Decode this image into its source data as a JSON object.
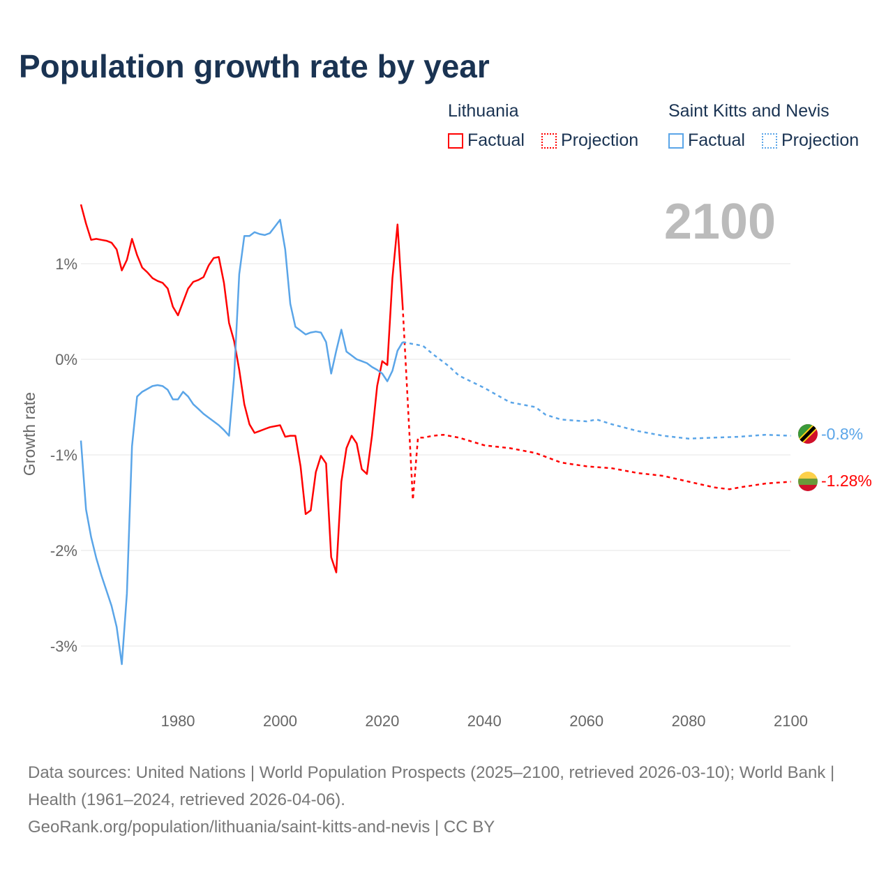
{
  "title": "Population growth rate by year",
  "legend": {
    "groups": [
      {
        "name": "Lithuania",
        "color": "#ff0000",
        "factual": "Factual",
        "projection": "Projection"
      },
      {
        "name": "Saint Kitts and Nevis",
        "color": "#5aa5e8",
        "factual": "Factual",
        "projection": "Projection"
      }
    ]
  },
  "year_label": "2100",
  "end_labels": {
    "lithuania": "-1.28%",
    "skn": "-0.8%"
  },
  "footer": {
    "line1": "Data sources: United Nations | World Population Prospects (2025–2100, retrieved 2026-03-10); World Bank | Health (1961–2024, retrieved 2026-04-06).",
    "line2": "GeoRank.org/population/lithuania/saint-kitts-and-nevis | CC BY"
  },
  "chart_data": {
    "type": "line",
    "title": "Population growth rate by year",
    "xlabel": "",
    "ylabel": "Growth rate",
    "xlim": [
      1961,
      2100
    ],
    "ylim": [
      -3.5,
      1.8
    ],
    "x_ticks": [
      1980,
      2000,
      2020,
      2040,
      2060,
      2080,
      2100
    ],
    "x_tick_labels": [
      "1980",
      "2000",
      "2020",
      "2040",
      "2060",
      "2080",
      "2100"
    ],
    "y_ticks": [
      1,
      0,
      -1,
      -2,
      -3
    ],
    "y_tick_labels": [
      "1%",
      "0%",
      "-1%",
      "-2%",
      "-3%"
    ],
    "grid": true,
    "legend_position": "top-right",
    "series": [
      {
        "name": "Lithuania Factual",
        "color": "#ff0000",
        "dashed": false,
        "start_year": 1961,
        "values": [
          1.62,
          1.42,
          1.25,
          1.26,
          1.25,
          1.24,
          1.22,
          1.15,
          0.93,
          1.04,
          1.26,
          1.09,
          0.96,
          0.91,
          0.85,
          0.82,
          0.8,
          0.74,
          0.55,
          0.46,
          0.6,
          0.74,
          0.81,
          0.83,
          0.86,
          0.98,
          1.06,
          1.07,
          0.8,
          0.38,
          0.19,
          -0.11,
          -0.47,
          -0.68,
          -0.77,
          -0.75,
          -0.73,
          -0.71,
          -0.7,
          -0.69,
          -0.81,
          -0.8,
          -0.8,
          -1.12,
          -1.62,
          -1.58,
          -1.18,
          -1.01,
          -1.09,
          -2.07,
          -2.23,
          -1.28,
          -0.93,
          -0.8,
          -0.88,
          -1.15,
          -1.2,
          -0.8,
          -0.28,
          -0.02,
          -0.06,
          0.85,
          1.41,
          0.55
        ]
      },
      {
        "name": "Lithuania Projection",
        "color": "#ff0000",
        "dashed": true,
        "points": [
          [
            2024,
            0.55
          ],
          [
            2025,
            -0.45
          ],
          [
            2026,
            -1.47
          ],
          [
            2027,
            -0.82
          ],
          [
            2028,
            -0.82
          ],
          [
            2030,
            -0.8
          ],
          [
            2032,
            -0.79
          ],
          [
            2035,
            -0.82
          ],
          [
            2040,
            -0.9
          ],
          [
            2045,
            -0.93
          ],
          [
            2050,
            -0.98
          ],
          [
            2055,
            -1.08
          ],
          [
            2060,
            -1.12
          ],
          [
            2065,
            -1.14
          ],
          [
            2070,
            -1.19
          ],
          [
            2075,
            -1.22
          ],
          [
            2080,
            -1.28
          ],
          [
            2085,
            -1.34
          ],
          [
            2088,
            -1.36
          ],
          [
            2090,
            -1.34
          ],
          [
            2095,
            -1.3
          ],
          [
            2100,
            -1.28
          ]
        ]
      },
      {
        "name": "Saint Kitts and Nevis Factual",
        "color": "#5aa5e8",
        "dashed": false,
        "start_year": 1961,
        "values": [
          -0.85,
          -1.57,
          -1.86,
          -2.08,
          -2.26,
          -2.42,
          -2.58,
          -2.8,
          -3.19,
          -2.45,
          -0.91,
          -0.39,
          -0.34,
          -0.31,
          -0.28,
          -0.27,
          -0.28,
          -0.32,
          -0.42,
          -0.42,
          -0.34,
          -0.39,
          -0.47,
          -0.52,
          -0.57,
          -0.61,
          -0.65,
          -0.69,
          -0.74,
          -0.8,
          -0.18,
          0.89,
          1.29,
          1.29,
          1.33,
          1.31,
          1.3,
          1.32,
          1.39,
          1.46,
          1.15,
          0.58,
          0.34,
          0.3,
          0.26,
          0.28,
          0.29,
          0.28,
          0.18,
          -0.15,
          0.09,
          0.31,
          0.08,
          0.04,
          0.0,
          -0.02,
          -0.04,
          -0.08,
          -0.11,
          -0.15,
          -0.23,
          -0.12,
          0.09,
          0.18
        ]
      },
      {
        "name": "Saint Kitts and Nevis Projection",
        "color": "#5aa5e8",
        "dashed": true,
        "points": [
          [
            2024,
            0.18
          ],
          [
            2025,
            0.17
          ],
          [
            2028,
            0.14
          ],
          [
            2030,
            0.05
          ],
          [
            2033,
            -0.07
          ],
          [
            2035,
            -0.17
          ],
          [
            2040,
            -0.3
          ],
          [
            2045,
            -0.45
          ],
          [
            2050,
            -0.5
          ],
          [
            2052,
            -0.58
          ],
          [
            2055,
            -0.63
          ],
          [
            2060,
            -0.65
          ],
          [
            2062,
            -0.63
          ],
          [
            2065,
            -0.68
          ],
          [
            2070,
            -0.75
          ],
          [
            2075,
            -0.8
          ],
          [
            2080,
            -0.83
          ],
          [
            2085,
            -0.82
          ],
          [
            2090,
            -0.81
          ],
          [
            2095,
            -0.79
          ],
          [
            2100,
            -0.8
          ]
        ]
      }
    ]
  }
}
